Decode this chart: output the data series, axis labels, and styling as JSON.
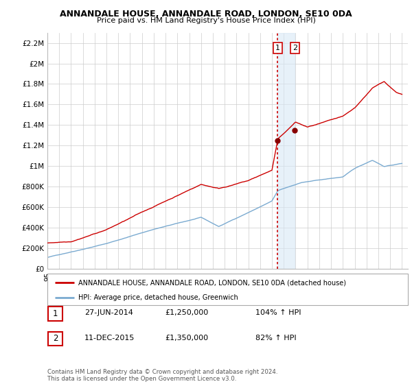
{
  "title": "ANNANDALE HOUSE, ANNANDALE ROAD, LONDON, SE10 0DA",
  "subtitle": "Price paid vs. HM Land Registry's House Price Index (HPI)",
  "ylabel_ticks": [
    "£0",
    "£200K",
    "£400K",
    "£600K",
    "£800K",
    "£1M",
    "£1.2M",
    "£1.4M",
    "£1.6M",
    "£1.8M",
    "£2M",
    "£2.2M"
  ],
  "ytick_vals": [
    0,
    200000,
    400000,
    600000,
    800000,
    1000000,
    1200000,
    1400000,
    1600000,
    1800000,
    2000000,
    2200000
  ],
  "ylim": [
    0,
    2300000
  ],
  "xlim_start": 1995.0,
  "xlim_end": 2025.5,
  "red_line_color": "#cc0000",
  "blue_line_color": "#7aaad0",
  "marker_color": "#880000",
  "legend1": "ANNANDALE HOUSE, ANNANDALE ROAD, LONDON, SE10 0DA (detached house)",
  "legend2": "HPI: Average price, detached house, Greenwich",
  "transaction1_date": "27-JUN-2014",
  "transaction1_price": "£1,250,000",
  "transaction1_pct": "104% ↑ HPI",
  "transaction2_date": "11-DEC-2015",
  "transaction2_price": "£1,350,000",
  "transaction2_pct": "82% ↑ HPI",
  "footnote": "Contains HM Land Registry data © Crown copyright and database right 2024.\nThis data is licensed under the Open Government Licence v3.0.",
  "vline1_x": 2014.49,
  "vline2_x": 2015.94,
  "marker1_x": 2014.49,
  "marker1_y": 1250000,
  "marker2_x": 2015.94,
  "marker2_y": 1350000,
  "bg_color": "#ffffff",
  "grid_color": "#cccccc",
  "span_color": "#d8e8f5",
  "span_alpha": 0.6
}
